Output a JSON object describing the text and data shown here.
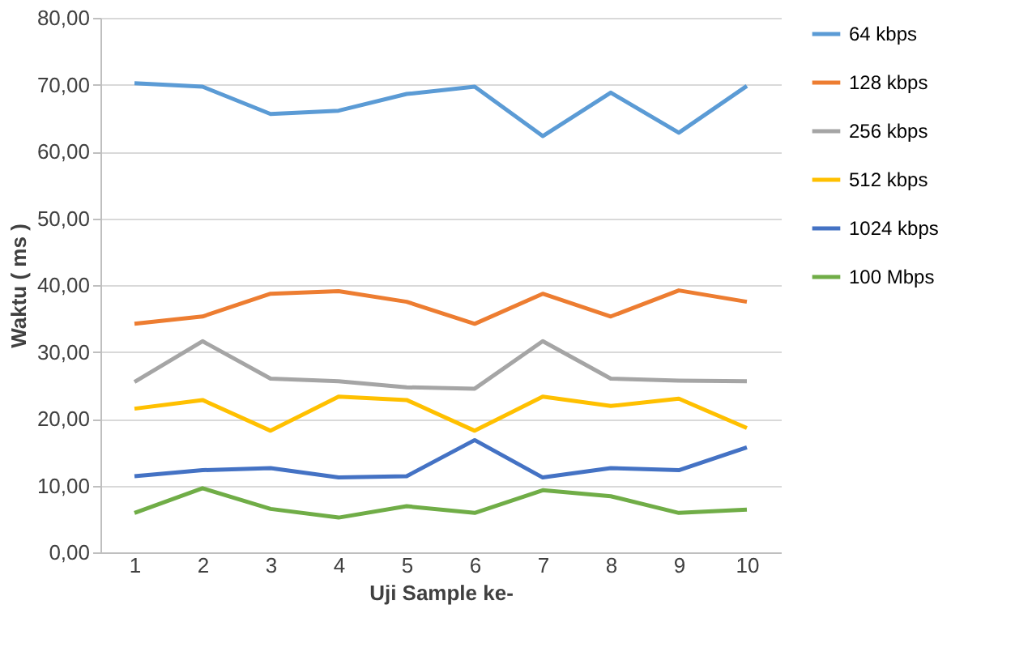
{
  "chart_data": {
    "type": "line",
    "xlabel": "Uji Sample ke-",
    "ylabel": "Waktu ( ms )",
    "categories": [
      "1",
      "2",
      "3",
      "4",
      "5",
      "6",
      "7",
      "8",
      "9",
      "10"
    ],
    "series": [
      {
        "name": "64 kbps",
        "color": "#5b9bd5",
        "values": [
          70.2,
          69.7,
          65.6,
          66.1,
          68.6,
          69.7,
          62.3,
          68.8,
          62.8,
          69.8
        ]
      },
      {
        "name": "128 kbps",
        "color": "#ed7d31",
        "values": [
          34.2,
          35.3,
          38.7,
          39.1,
          37.5,
          34.2,
          38.7,
          35.3,
          39.2,
          37.5
        ]
      },
      {
        "name": "256 kbps",
        "color": "#a5a5a5",
        "values": [
          25.5,
          31.6,
          26.0,
          25.6,
          24.7,
          24.5,
          31.6,
          26.0,
          25.7,
          25.6
        ]
      },
      {
        "name": "512 kbps",
        "color": "#ffc000",
        "values": [
          21.5,
          22.8,
          18.2,
          23.3,
          22.8,
          18.2,
          23.3,
          21.9,
          23.0,
          18.6
        ]
      },
      {
        "name": "1024 kbps",
        "color": "#4472c4",
        "values": [
          11.4,
          12.3,
          12.6,
          11.2,
          11.4,
          16.8,
          11.2,
          12.6,
          12.3,
          15.7
        ]
      },
      {
        "name": "100 Mbps",
        "color": "#70ad47",
        "values": [
          5.9,
          9.6,
          6.5,
          5.2,
          6.9,
          5.9,
          9.3,
          8.4,
          5.9,
          6.4
        ]
      }
    ],
    "ylim": [
      0,
      80
    ],
    "yticks": [
      {
        "value": 0,
        "label": "0,00"
      },
      {
        "value": 10,
        "label": "10,00"
      },
      {
        "value": 20,
        "label": "20,00"
      },
      {
        "value": 30,
        "label": "30,00"
      },
      {
        "value": 40,
        "label": "40,00"
      },
      {
        "value": 50,
        "label": "50,00"
      },
      {
        "value": 60,
        "label": "60,00"
      },
      {
        "value": 70,
        "label": "70,00"
      },
      {
        "value": 80,
        "label": "80,00"
      }
    ],
    "grid": "y",
    "legend": "right",
    "marker": "none",
    "line_style": "solid"
  }
}
